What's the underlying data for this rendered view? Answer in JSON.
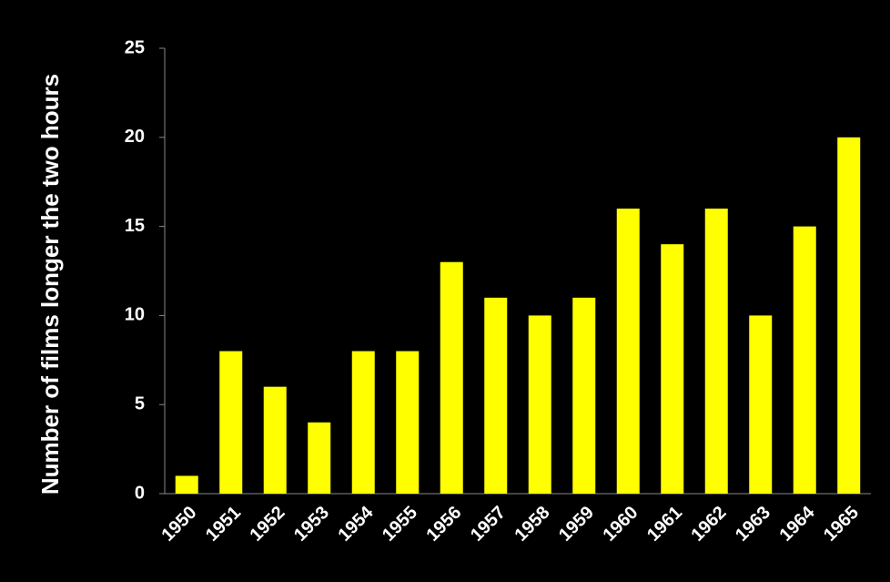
{
  "chart_data": {
    "type": "bar",
    "y_label": "Number of films longer the two hours",
    "categories": [
      "1950",
      "1951",
      "1952",
      "1953",
      "1954",
      "1955",
      "1956",
      "1957",
      "1958",
      "1959",
      "1960",
      "1961",
      "1962",
      "1963",
      "1964",
      "1965"
    ],
    "values": [
      1,
      8,
      6,
      4,
      8,
      8,
      13,
      11,
      10,
      11,
      16,
      14,
      16,
      10,
      15,
      20
    ],
    "color": "#ffff00",
    "ylim": [
      0,
      25
    ],
    "yticks": [
      0,
      5,
      10,
      15,
      20,
      25
    ],
    "grid": false
  }
}
